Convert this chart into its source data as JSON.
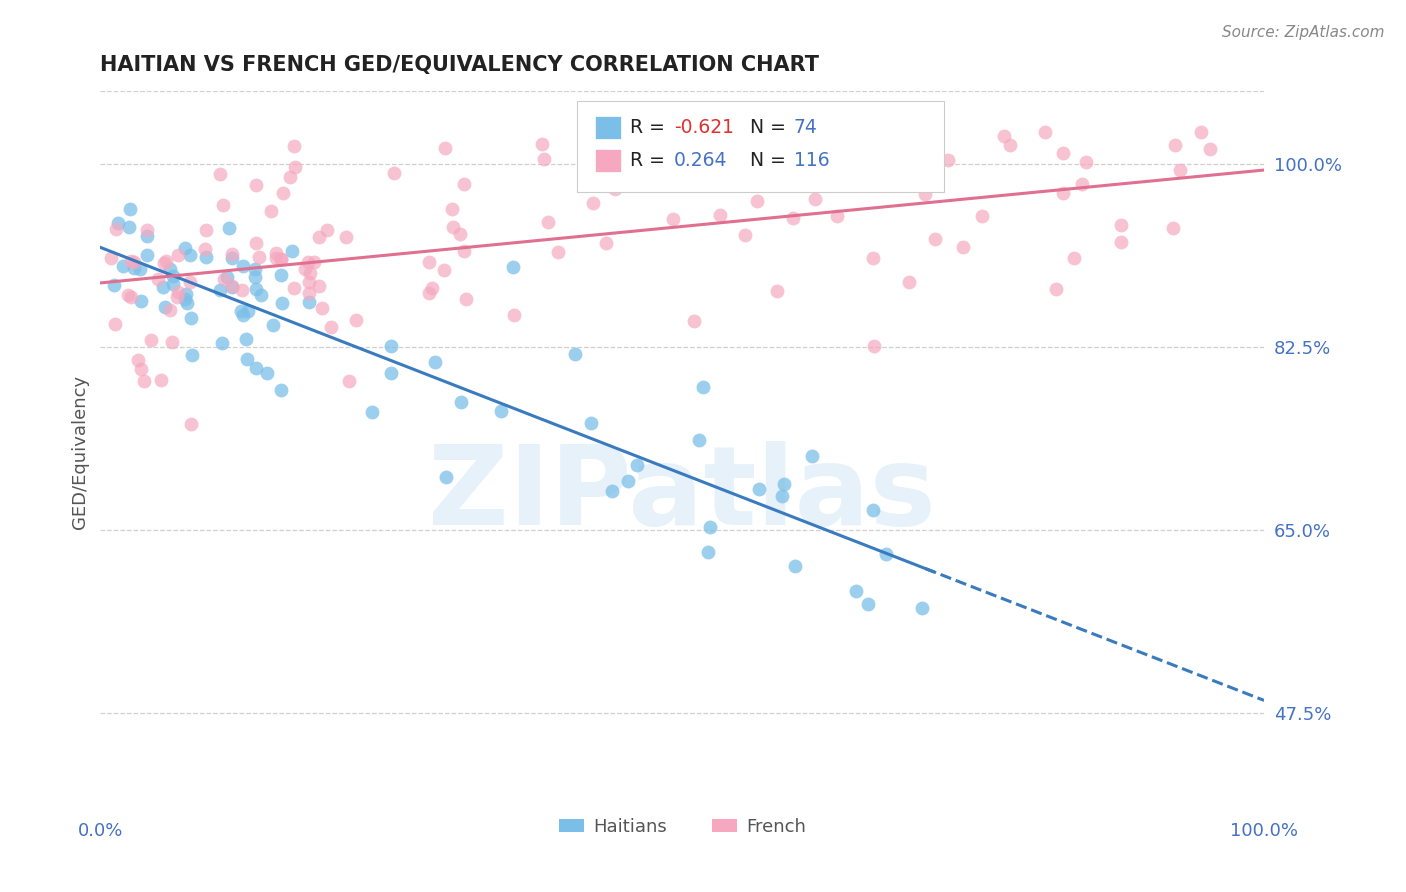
{
  "title": "HAITIAN VS FRENCH GED/EQUIVALENCY CORRELATION CHART",
  "source": "Source: ZipAtlas.com",
  "ylabel": "GED/Equivalency",
  "xlim": [
    0.0,
    1.0
  ],
  "ylim": [
    0.38,
    1.07
  ],
  "yticks": [
    1.0,
    0.825,
    0.65,
    0.475
  ],
  "ytick_labels": [
    "100.0%",
    "82.5%",
    "65.0%",
    "47.5%"
  ],
  "xtick_labels": [
    "0.0%",
    "100.0%"
  ],
  "xticks": [
    0.0,
    1.0
  ],
  "haitian_color": "#7bbfe8",
  "haitian_edge": "none",
  "french_color": "#f5a8c0",
  "french_edge": "none",
  "haitian_R": -0.621,
  "haitian_N": 74,
  "french_R": 0.264,
  "french_N": 116,
  "haitian_line_color": "#3a7bbf",
  "french_line_color": "#e07090",
  "watermark": "ZIPatlas",
  "watermark_color": "#b8d8f0",
  "legend_R1_color": "#e03030",
  "legend_R2_color": "#4472c4",
  "legend_N_color": "#4472c4",
  "tick_color": "#4472c4",
  "source_color": "#888888",
  "title_color": "#222222",
  "ylabel_color": "#555555",
  "grid_color": "#d0d0d0"
}
